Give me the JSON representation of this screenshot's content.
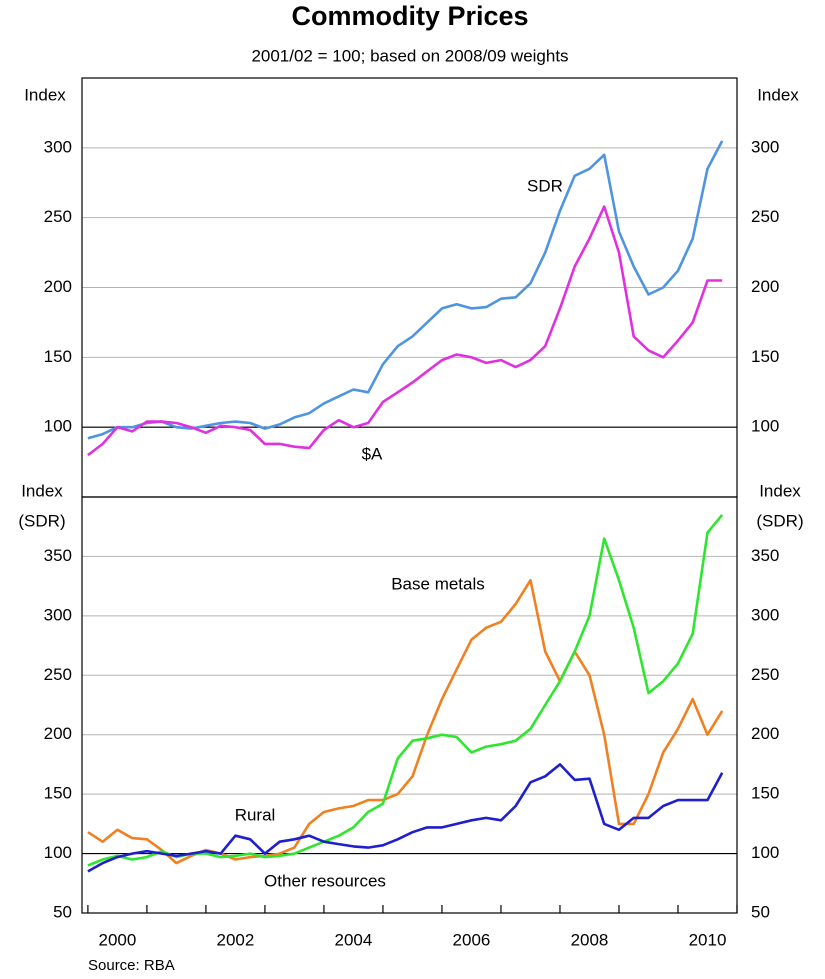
{
  "chart_data": [
    {
      "type": "line",
      "title": "Commodity Prices",
      "subtitle": "2001/02 = 100; based on 2008/09 weights",
      "y_label": [
        "Index"
      ],
      "x": [
        2000,
        2000.25,
        2000.5,
        2000.75,
        2001,
        2001.25,
        2001.5,
        2001.75,
        2002,
        2002.25,
        2002.5,
        2002.75,
        2003,
        2003.25,
        2003.5,
        2003.75,
        2004,
        2004.25,
        2004.5,
        2004.75,
        2005,
        2005.25,
        2005.5,
        2005.75,
        2006,
        2006.25,
        2006.5,
        2006.75,
        2007,
        2007.25,
        2007.5,
        2007.75,
        2008,
        2008.25,
        2008.5,
        2008.75,
        2009,
        2009.25,
        2009.5,
        2009.75,
        2010,
        2010.25,
        2010.5,
        2010.75
      ],
      "xlim": [
        1999.9,
        2011.0
      ],
      "ylim": [
        50,
        350
      ],
      "yticks": [
        100,
        150,
        200,
        250,
        300
      ],
      "grid": true,
      "baseline": 100,
      "series": [
        {
          "name": "SDR",
          "color": "#4f94e0",
          "values": [
            92,
            95,
            100,
            100,
            103,
            104,
            100,
            99,
            101,
            103,
            104,
            103,
            99,
            102,
            107,
            110,
            117,
            122,
            127,
            125,
            145,
            158,
            165,
            175,
            185,
            188,
            185,
            186,
            192,
            193,
            203,
            225,
            255,
            280,
            285,
            295,
            240,
            215,
            195,
            200,
            212,
            235,
            285,
            305
          ]
        },
        {
          "name": "$A",
          "color": "#e030e0",
          "values": [
            80,
            88,
            100,
            97,
            104,
            104,
            103,
            100,
            96,
            101,
            100,
            98,
            88,
            88,
            86,
            85,
            98,
            105,
            100,
            103,
            118,
            125,
            132,
            140,
            148,
            152,
            150,
            146,
            148,
            143,
            148,
            158,
            185,
            215,
            235,
            258,
            225,
            165,
            155,
            150,
            162,
            175,
            205,
            205
          ]
        }
      ]
    },
    {
      "type": "line",
      "y_label": [
        "Index",
        "(SDR)"
      ],
      "source": "Source: RBA",
      "x": [
        2000,
        2000.25,
        2000.5,
        2000.75,
        2001,
        2001.25,
        2001.5,
        2001.75,
        2002,
        2002.25,
        2002.5,
        2002.75,
        2003,
        2003.25,
        2003.5,
        2003.75,
        2004,
        2004.25,
        2004.5,
        2004.75,
        2005,
        2005.25,
        2005.5,
        2005.75,
        2006,
        2006.25,
        2006.5,
        2006.75,
        2007,
        2007.25,
        2007.5,
        2007.75,
        2008,
        2008.25,
        2008.5,
        2008.75,
        2009,
        2009.25,
        2009.5,
        2009.75,
        2010,
        2010.25,
        2010.5,
        2010.75
      ],
      "xlim": [
        1999.9,
        2011.0
      ],
      "xticks": [
        2000,
        2001,
        2002,
        2003,
        2004,
        2005,
        2006,
        2007,
        2008,
        2009,
        2010,
        2011
      ],
      "ylim": [
        50,
        400
      ],
      "yticks": [
        50,
        100,
        150,
        200,
        250,
        300,
        350
      ],
      "grid": true,
      "baseline": 100,
      "series": [
        {
          "name": "Base metals",
          "color": "#f08020",
          "values": [
            118,
            110,
            120,
            113,
            112,
            103,
            92,
            98,
            103,
            100,
            95,
            97,
            98,
            100,
            105,
            125,
            135,
            138,
            140,
            145,
            145,
            150,
            165,
            200,
            230,
            255,
            280,
            290,
            295,
            310,
            330,
            270,
            245,
            270,
            250,
            200,
            125,
            125,
            150,
            185,
            205,
            230,
            200,
            220
          ]
        },
        {
          "name": "Other resources",
          "color": "#2ee62e",
          "values": [
            90,
            95,
            98,
            95,
            97,
            102,
            97,
            100,
            100,
            97,
            98,
            100,
            97,
            98,
            100,
            105,
            110,
            115,
            122,
            135,
            142,
            180,
            195,
            197,
            200,
            198,
            185,
            190,
            192,
            195,
            205,
            225,
            245,
            270,
            300,
            365,
            330,
            290,
            235,
            245,
            260,
            285,
            370,
            385
          ]
        },
        {
          "name": "Rural",
          "color": "#1f1fcc",
          "values": [
            85,
            92,
            97,
            100,
            102,
            100,
            98,
            100,
            102,
            100,
            115,
            112,
            100,
            110,
            112,
            115,
            110,
            108,
            106,
            105,
            107,
            112,
            118,
            122,
            122,
            125,
            128,
            130,
            128,
            140,
            160,
            165,
            175,
            162,
            163,
            125,
            120,
            130,
            130,
            140,
            145,
            145,
            145,
            168
          ]
        }
      ]
    }
  ]
}
